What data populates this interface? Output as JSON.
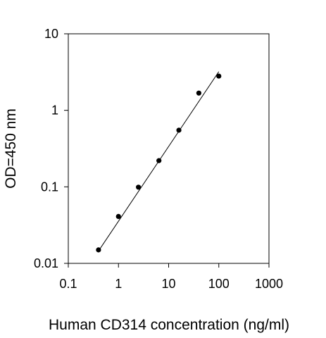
{
  "chart_data": {
    "type": "scatter",
    "title": "",
    "xlabel": "Human CD314 concentration (ng/ml)",
    "ylabel": "OD=450 nm",
    "x_scale": "log",
    "y_scale": "log",
    "xlim": [
      0.1,
      1000
    ],
    "ylim": [
      0.01,
      10
    ],
    "x_ticks": [
      "0.1",
      "1",
      "10",
      "100",
      "1000"
    ],
    "y_ticks": [
      "0.01",
      "0.1",
      "1",
      "10"
    ],
    "grid": false,
    "legend": "none",
    "series": [
      {
        "x": [
          0.4,
          1.0,
          2.5,
          6.4,
          16,
          40,
          100
        ],
        "y": [
          0.015,
          0.041,
          0.099,
          0.22,
          0.55,
          1.68,
          2.8
        ]
      }
    ],
    "fit_line": {
      "x": [
        0.4,
        100
      ],
      "y": [
        0.0145,
        3.2
      ]
    },
    "colors": {
      "marker": "#000000",
      "axis": "#000000",
      "fit_line": "#000000"
    }
  }
}
